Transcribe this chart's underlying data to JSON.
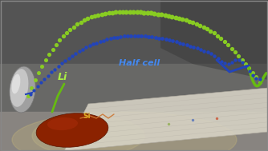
{
  "fig_width": 3.34,
  "fig_height": 1.89,
  "dpi": 100,
  "green_arc_label": "Li",
  "blue_arc_label": "Half cell",
  "si_label": "Si",
  "green_dot_color": "#88cc22",
  "green_line_color": "#66bb11",
  "blue_dot_color": "#2244bb",
  "label_green_color": "#aaee44",
  "label_blue_color": "#4488ee",
  "label_si_color": "#ddaa22",
  "orange_line_color": "#cc7733",
  "si_disc_color": "#8B2200",
  "li_foil_color": "#c8c8c8",
  "bg_top": "#5a5a5a",
  "bg_mid": "#7a7a78",
  "bg_floor": "#a09890",
  "paper_color": "#d8d4c8"
}
